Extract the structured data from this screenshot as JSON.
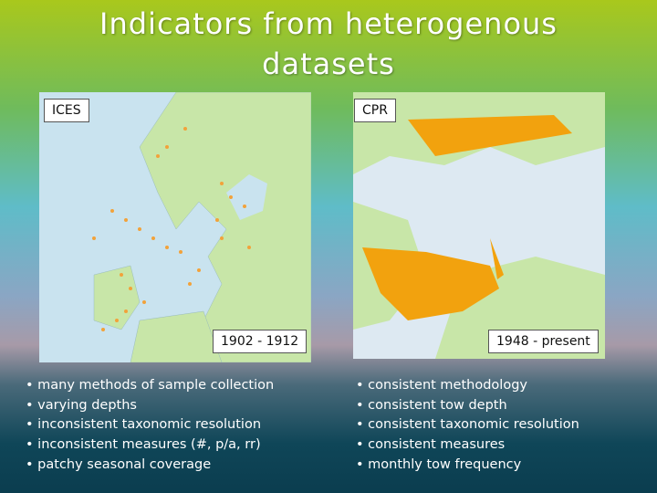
{
  "title": "Indicators from heterogenous datasets",
  "panels": [
    {
      "label": "ICES",
      "period": "1902 - 1912",
      "bullets": [
        "many methods of sample collection",
        "varying depths",
        "inconsistent taxonomic resolution",
        "inconsistent measures (#, p/a, rr)",
        "patchy seasonal coverage"
      ]
    },
    {
      "label": "CPR",
      "period": "1948 - present",
      "bullets": [
        "consistent methodology",
        "consistent tow depth",
        "consistent taxonomic resolution",
        "consistent measures",
        "monthly tow frequency"
      ]
    }
  ]
}
